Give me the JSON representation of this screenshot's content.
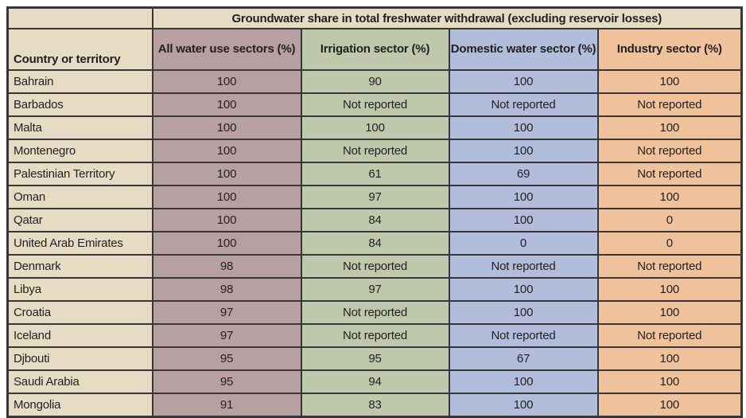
{
  "colors": {
    "page_bg": "#ffffff",
    "border": "#3a3537",
    "text": "#231f20",
    "beige": "#e6dcc3",
    "mauve": "#b7a0a2",
    "green": "#bfc8ab",
    "blue": "#b1bddb",
    "orange": "#efc29c"
  },
  "table": {
    "title": "Groundwater share in total freshwater withdrawal (excluding reservoir losses)",
    "row_header": "Country or territory",
    "column_headers": [
      {
        "label": "All water use\nsectors (%)",
        "color_key": "mauve"
      },
      {
        "label": "Irrigation\nsector (%)",
        "color_key": "green"
      },
      {
        "label": "Domestic\nwater sector (%)",
        "color_key": "blue"
      },
      {
        "label": "Industry\nsector (%)",
        "color_key": "orange"
      }
    ],
    "rows": [
      {
        "country": "Bahrain",
        "values": [
          "100",
          "90",
          "100",
          "100"
        ]
      },
      {
        "country": "Barbados",
        "values": [
          "100",
          "Not reported",
          "Not reported",
          "Not reported"
        ]
      },
      {
        "country": "Malta",
        "values": [
          "100",
          "100",
          "100",
          "100"
        ]
      },
      {
        "country": "Montenegro",
        "values": [
          "100",
          "Not reported",
          "100",
          "Not reported"
        ]
      },
      {
        "country": "Palestinian Territory",
        "values": [
          "100",
          "61",
          "69",
          "Not reported"
        ]
      },
      {
        "country": "Oman",
        "values": [
          "100",
          "97",
          "100",
          "100"
        ]
      },
      {
        "country": "Qatar",
        "values": [
          "100",
          "84",
          "100",
          "0"
        ]
      },
      {
        "country": "United Arab Emirates",
        "values": [
          "100",
          "84",
          "0",
          "0"
        ]
      },
      {
        "country": "Denmark",
        "values": [
          "98",
          "Not reported",
          "Not reported",
          "Not reported"
        ]
      },
      {
        "country": "Libya",
        "values": [
          "98",
          "97",
          "100",
          "100"
        ]
      },
      {
        "country": "Croatia",
        "values": [
          "97",
          "Not reported",
          "100",
          "100"
        ]
      },
      {
        "country": "Iceland",
        "values": [
          "97",
          "Not reported",
          "Not reported",
          "Not reported"
        ]
      },
      {
        "country": "Djbouti",
        "values": [
          "95",
          "95",
          "67",
          "100"
        ]
      },
      {
        "country": "Saudi Arabia",
        "values": [
          "95",
          "94",
          "100",
          "100"
        ]
      },
      {
        "country": "Mongolia",
        "values": [
          "91",
          "83",
          "100",
          "100"
        ]
      }
    ]
  }
}
